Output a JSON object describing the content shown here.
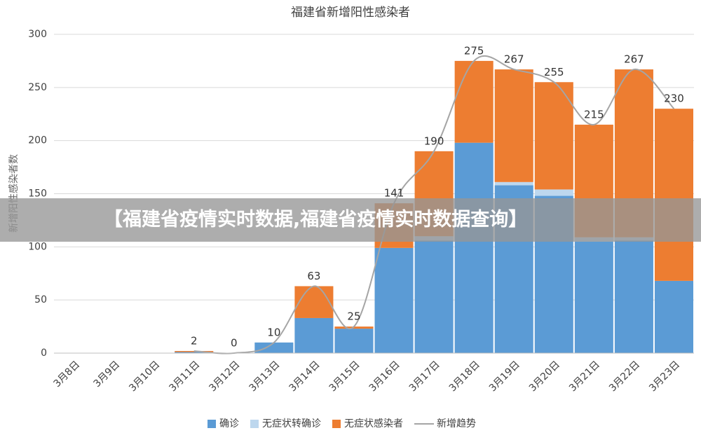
{
  "chart_data": {
    "type": "bar",
    "title": "福建省新增阳性感染者",
    "y_label": "新增阳性感染者数",
    "categories": [
      "3月8日",
      "3月9日",
      "3月10日",
      "3月11日",
      "3月12日",
      "3月13日",
      "3月14日",
      "3月15日",
      "3月16日",
      "3月17日",
      "3月18日",
      "3月19日",
      "3月20日",
      "3月21日",
      "3月22日",
      "3月23日"
    ],
    "stacked": true,
    "series": [
      {
        "name": "确诊",
        "color": "#5b9bd5",
        "values": [
          0,
          0,
          0,
          1,
          0,
          10,
          33,
          23,
          99,
          106,
          198,
          158,
          148,
          105,
          106,
          68
        ]
      },
      {
        "name": "无症状转确诊",
        "color": "#bdd7ee",
        "values": [
          0,
          0,
          0,
          0,
          0,
          0,
          0,
          0,
          0,
          4,
          0,
          3,
          6,
          4,
          3,
          0
        ]
      },
      {
        "name": "无症状感染者",
        "color": "#ed7d31",
        "values": [
          0,
          0,
          0,
          1,
          0,
          0,
          30,
          2,
          42,
          80,
          77,
          106,
          101,
          106,
          158,
          162
        ]
      },
      {
        "name": "新增趋势",
        "type": "line",
        "color": "#a5a5a5",
        "values": [
          null,
          null,
          null,
          2,
          0,
          10,
          63,
          25,
          141,
          190,
          275,
          267,
          255,
          215,
          267,
          230
        ]
      }
    ],
    "ylim": [
      0,
      300
    ],
    "yticks": [
      0,
      50,
      100,
      150,
      200,
      250,
      300
    ],
    "grid": true,
    "legend": "bottom"
  },
  "banner": {
    "text": "【福建省疫情实时数据,福建省疫情实时数据查询】"
  }
}
